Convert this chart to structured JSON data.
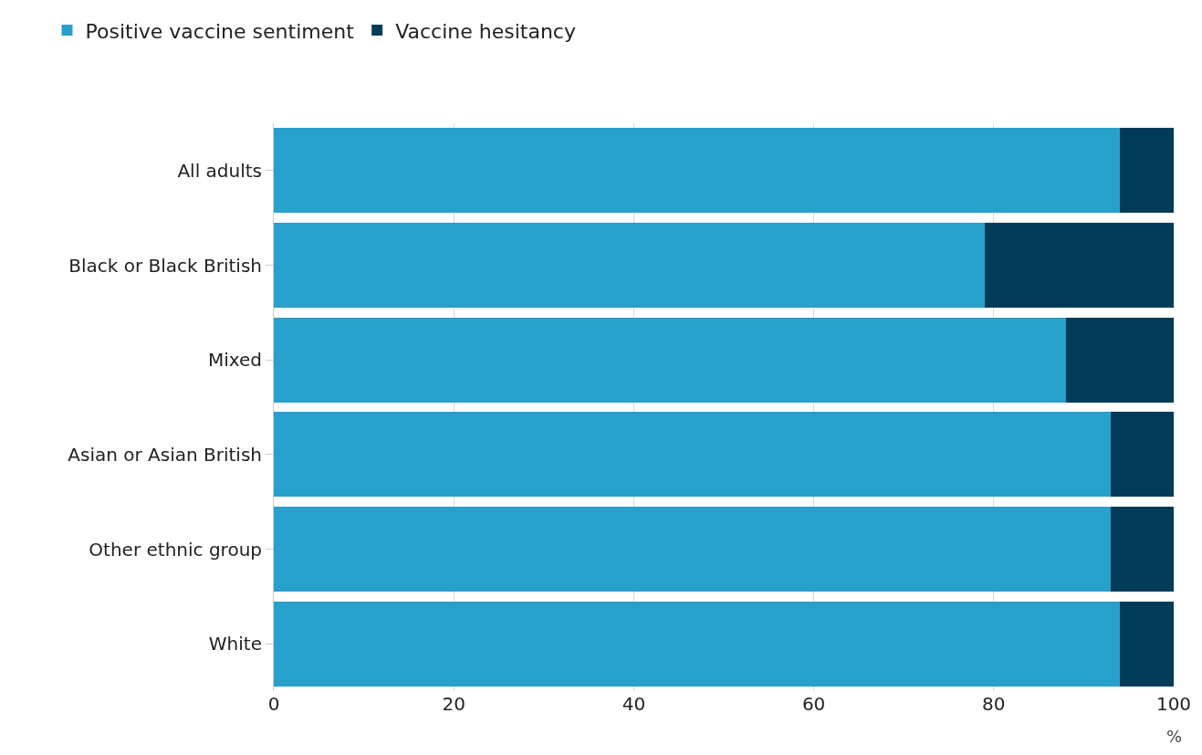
{
  "chart_data": {
    "type": "bar",
    "orientation": "horizontal",
    "stacked": true,
    "categories": [
      "All adults",
      "Black or Black British",
      "Mixed",
      "Asian or Asian British",
      "Other ethnic group",
      "White"
    ],
    "series": [
      {
        "name": "Positive vaccine sentiment",
        "color": "#27a0cc",
        "values": [
          94,
          79,
          88,
          93,
          93,
          94
        ]
      },
      {
        "name": "Vaccine hesitancy",
        "color": "#003c57",
        "values": [
          6,
          21,
          12,
          7,
          7,
          6
        ]
      }
    ],
    "xlim": [
      0,
      100
    ],
    "xticks": [
      0,
      20,
      40,
      60,
      80,
      100
    ],
    "xlabel": "%",
    "grid": "x",
    "legend": "top left"
  }
}
